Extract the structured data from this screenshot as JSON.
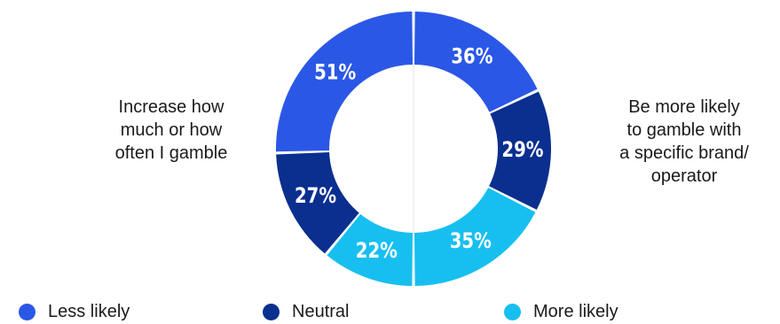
{
  "chart_data": {
    "type": "donut",
    "series_order": [
      "Less likely",
      "Neutral",
      "More likely"
    ],
    "colors": {
      "Less likely": "#2b57e7",
      "Neutral": "#0b2f8f",
      "More likely": "#17bff0"
    },
    "halves": [
      {
        "side": "left",
        "label": "Increase how\nmuch or how\noften I gamble",
        "values": [
          {
            "category": "Less likely",
            "value": 51,
            "label": "51%"
          },
          {
            "category": "Neutral",
            "value": 27,
            "label": "27%"
          },
          {
            "category": "More likely",
            "value": 22,
            "label": "22%"
          }
        ]
      },
      {
        "side": "right",
        "label": "Be more likely\nto gamble with\na specific brand/\noperator",
        "values": [
          {
            "category": "Less likely",
            "value": 36,
            "label": "36%"
          },
          {
            "category": "Neutral",
            "value": 29,
            "label": "29%"
          },
          {
            "category": "More likely",
            "value": 35,
            "label": "35%"
          }
        ]
      }
    ],
    "legend": [
      {
        "label": "Less likely",
        "color": "#2b57e7"
      },
      {
        "label": "Neutral",
        "color": "#0b2f8f"
      },
      {
        "label": "More likely",
        "color": "#17bff0"
      }
    ],
    "legend_position": "bottom"
  }
}
